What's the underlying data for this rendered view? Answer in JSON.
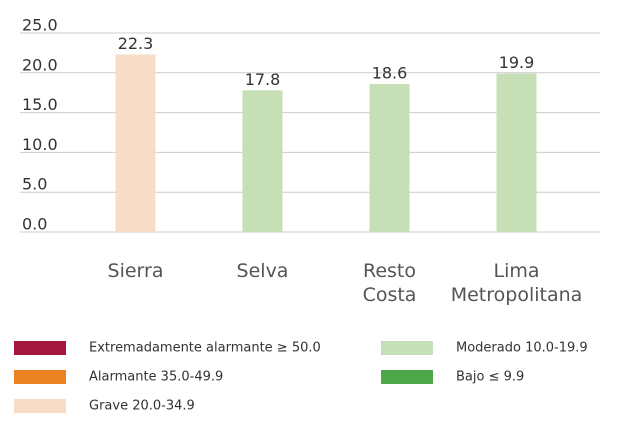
{
  "chart_data": {
    "type": "bar",
    "categories": [
      "Sierra",
      "Selva",
      "Resto Costa",
      "Lima Metropolitana"
    ],
    "values": [
      22.3,
      17.8,
      18.6,
      19.9
    ],
    "colors": [
      "#f7dcc6",
      "#c6dfb6",
      "#c6dfb6",
      "#c6dfb6"
    ],
    "ylim": [
      0,
      25
    ],
    "yticks": [
      {
        "value": 0,
        "label": "0.0"
      },
      {
        "value": 5,
        "label": "5.0"
      },
      {
        "value": 10,
        "label": "10.0"
      },
      {
        "value": 15,
        "label": "15.0"
      },
      {
        "value": 20,
        "label": "20.0"
      },
      {
        "value": 25,
        "label": "25.0"
      }
    ],
    "grid": true,
    "legend": [
      {
        "label": "Extremadamente alarmante ≥ 50.0",
        "color": "#a5163f"
      },
      {
        "label": "Alarmante 35.0-49.9",
        "color": "#ec8323"
      },
      {
        "label": "Grave 20.0-34.9",
        "color": "#f7dcc6"
      },
      {
        "label": "Moderado 10.0-19.9",
        "color": "#c6dfb6"
      },
      {
        "label": "Bajo ≤ 9.9",
        "color": "#4ea64a"
      }
    ]
  }
}
